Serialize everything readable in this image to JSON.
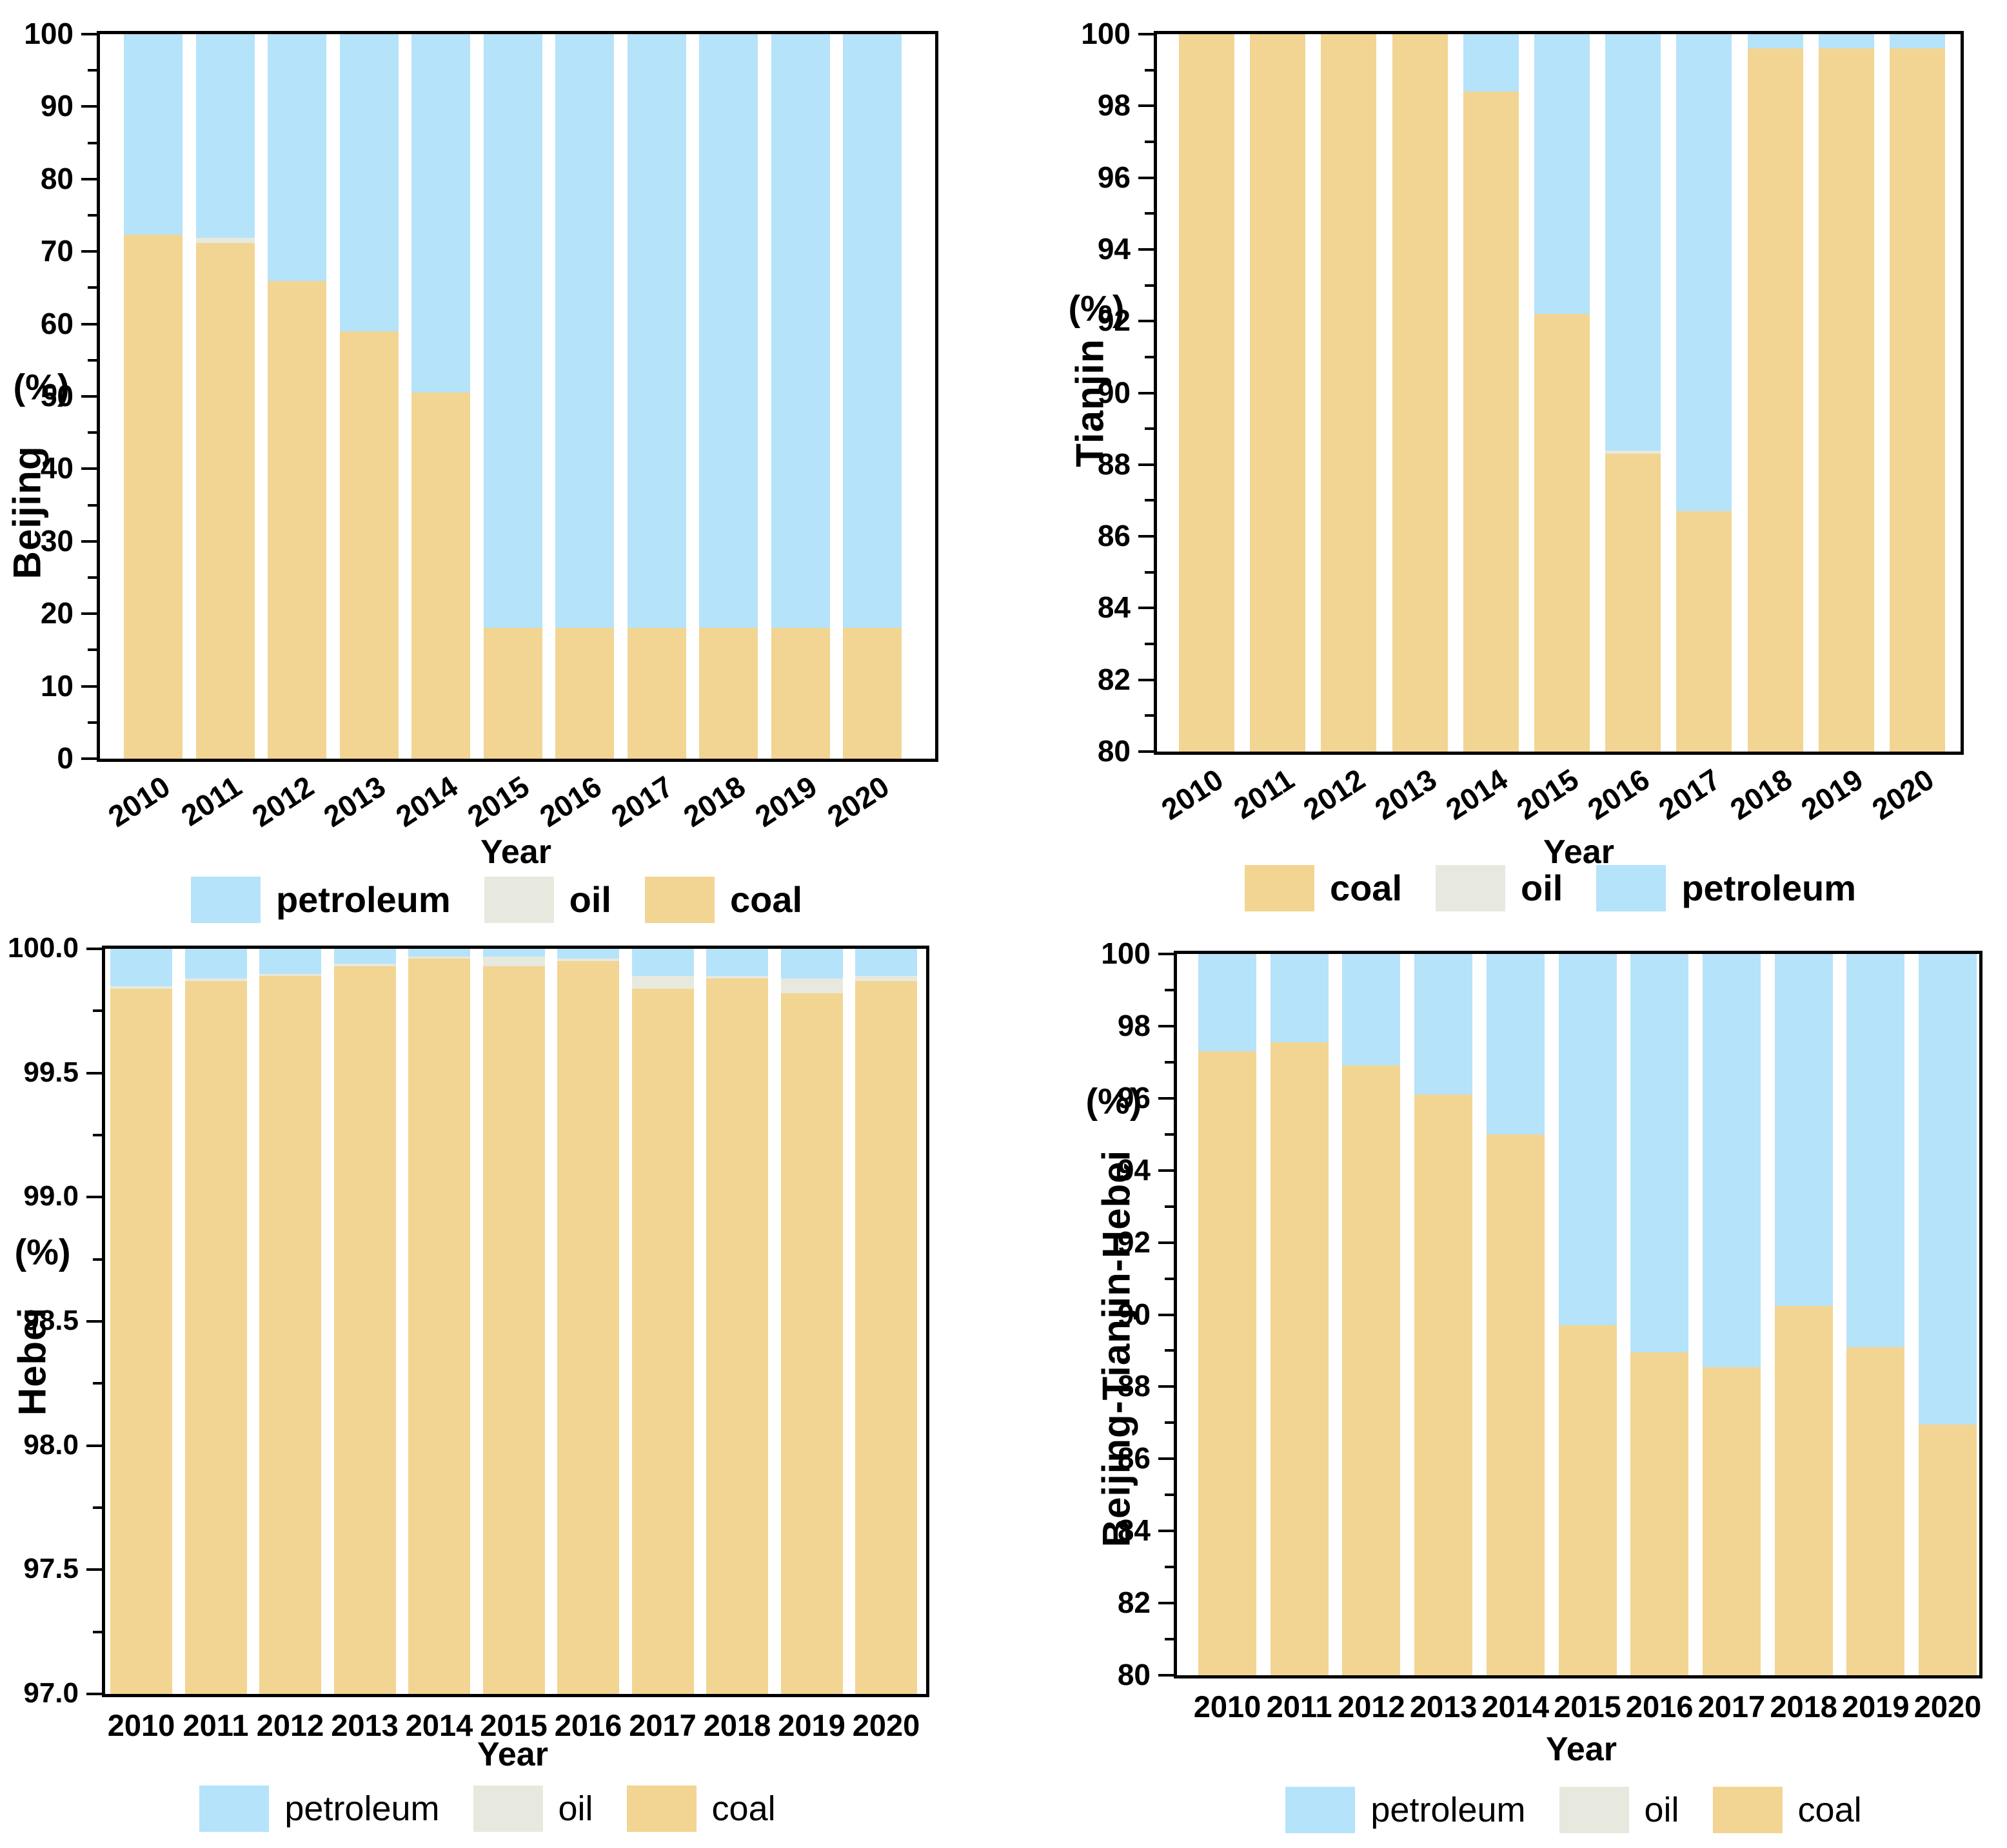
{
  "colors": {
    "coal": "#F2D592",
    "oil": "#E8E9DE",
    "petroleum": "#B5E3FA",
    "axis": "#000000",
    "background": "#FFFFFF"
  },
  "legend_labels": {
    "coal": "coal",
    "oil": "oil",
    "petroleum": "petroleum"
  },
  "chart_data": [
    {
      "id": "beijing",
      "type": "bar",
      "stacked": true,
      "title": "",
      "ylabel_unit": "(%)",
      "ylabel_region": "Beijing",
      "xlabel": "Year",
      "ylim": [
        0,
        100
      ],
      "ytick_step": 10,
      "ytick_minor_step": 5,
      "ytick_labels": [
        "0",
        "10",
        "20",
        "30",
        "40",
        "50",
        "60",
        "70",
        "80",
        "90",
        "100"
      ],
      "xticks_rotated": true,
      "legend_position": "bottom",
      "legend": [
        "petroleum",
        "oil",
        "coal"
      ],
      "categories": [
        "2010",
        "2011",
        "2012",
        "2013",
        "2014",
        "2015",
        "2016",
        "2017",
        "2018",
        "2019",
        "2020"
      ],
      "series": [
        {
          "name": "coal",
          "values": [
            72.3,
            71.2,
            65.9,
            59.0,
            50.5,
            18.1,
            18.1,
            18.1,
            18.1,
            18.1,
            18.1
          ]
        },
        {
          "name": "oil",
          "values": [
            0,
            0.7,
            0,
            0,
            0,
            0,
            0,
            0,
            0,
            0,
            0
          ]
        },
        {
          "name": "petroleum",
          "values": [
            27.7,
            28.1,
            34.1,
            41.0,
            49.5,
            81.9,
            81.9,
            81.9,
            81.9,
            81.9,
            81.9
          ]
        }
      ]
    },
    {
      "id": "tianjin",
      "type": "bar",
      "stacked": true,
      "title": "",
      "ylabel_unit": "(%)",
      "ylabel_region": "Tianjin",
      "xlabel": "Year",
      "ylim": [
        80,
        100
      ],
      "ytick_step": 2,
      "ytick_minor_step": 1,
      "ytick_labels": [
        "80",
        "82",
        "84",
        "86",
        "88",
        "90",
        "92",
        "94",
        "96",
        "98",
        "100"
      ],
      "xticks_rotated": true,
      "legend_position": "bottom",
      "legend": [
        "coal",
        "oil",
        "petroleum"
      ],
      "categories": [
        "2010",
        "2011",
        "2012",
        "2013",
        "2014",
        "2015",
        "2016",
        "2017",
        "2018",
        "2019",
        "2020"
      ],
      "series": [
        {
          "name": "coal",
          "values": [
            100,
            100,
            100,
            100,
            98.4,
            92.2,
            88.3,
            86.7,
            99.6,
            99.6,
            99.6
          ]
        },
        {
          "name": "oil",
          "values": [
            0,
            0,
            0,
            0,
            0,
            0,
            0.1,
            0,
            0,
            0,
            0
          ]
        },
        {
          "name": "petroleum",
          "values": [
            0,
            0,
            0,
            0,
            1.6,
            7.8,
            11.6,
            13.3,
            0.4,
            0.4,
            0.4
          ]
        }
      ]
    },
    {
      "id": "hebei",
      "type": "bar",
      "stacked": true,
      "title": "",
      "ylabel_unit": "(%)",
      "ylabel_region": "Hebei",
      "xlabel": "Year",
      "ylim": [
        97.0,
        100.0
      ],
      "ytick_step": 0.5,
      "ytick_minor_step": 0.25,
      "ytick_labels": [
        "97.0",
        "97.5",
        "98.0",
        "98.5",
        "99.0",
        "99.5",
        "100.0"
      ],
      "xticks_rotated": false,
      "legend_position": "bottom",
      "legend": [
        "petroleum",
        "oil",
        "coal"
      ],
      "categories": [
        "2010",
        "2011",
        "2012",
        "2013",
        "2014",
        "2015",
        "2016",
        "2017",
        "2018",
        "2019",
        "2020"
      ],
      "series": [
        {
          "name": "coal",
          "values": [
            99.84,
            99.87,
            99.89,
            99.93,
            99.96,
            99.93,
            99.95,
            99.84,
            99.88,
            99.82,
            99.87
          ]
        },
        {
          "name": "oil",
          "values": [
            0.01,
            0.01,
            0.01,
            0.01,
            0.01,
            0.04,
            0.01,
            0.05,
            0.01,
            0.06,
            0.02
          ]
        },
        {
          "name": "petroleum",
          "values": [
            0.15,
            0.12,
            0.1,
            0.06,
            0.03,
            0.03,
            0.04,
            0.11,
            0.11,
            0.12,
            0.11
          ]
        }
      ]
    },
    {
      "id": "beijing-tianjin-hebei",
      "type": "bar",
      "stacked": true,
      "title": "",
      "ylabel_unit": "(%)",
      "ylabel_region": "Beijing-Tianjin-Hebei",
      "xlabel": "Year",
      "ylim": [
        80,
        100
      ],
      "ytick_step": 2,
      "ytick_minor_step": 1,
      "ytick_labels": [
        "80",
        "82",
        "84",
        "86",
        "88",
        "90",
        "92",
        "94",
        "96",
        "98",
        "100"
      ],
      "xticks_rotated": false,
      "legend_position": "bottom",
      "legend": [
        "petroleum",
        "oil",
        "coal"
      ],
      "categories": [
        "2010",
        "2011",
        "2012",
        "2013",
        "2014",
        "2015",
        "2016",
        "2017",
        "2018",
        "2019",
        "2020"
      ],
      "series": [
        {
          "name": "coal",
          "values": [
            97.3,
            97.55,
            96.9,
            96.1,
            95.0,
            89.7,
            88.95,
            88.55,
            90.25,
            89.1,
            86.95
          ]
        },
        {
          "name": "oil",
          "values": [
            0,
            0,
            0,
            0,
            0,
            0,
            0,
            0,
            0,
            0,
            0
          ]
        },
        {
          "name": "petroleum",
          "values": [
            2.7,
            2.45,
            3.1,
            3.9,
            5.0,
            10.3,
            11.05,
            11.45,
            9.75,
            10.9,
            13.05
          ]
        }
      ]
    }
  ]
}
